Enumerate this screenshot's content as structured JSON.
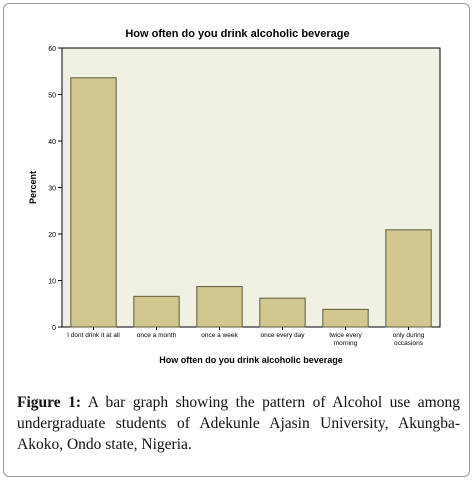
{
  "chart_data": {
    "type": "bar",
    "title": "How often do you drink alcoholic beverage",
    "xlabel": "How often do you drink alcoholic beverage",
    "ylabel": "Percent",
    "categories": [
      "I dont drink it at all",
      "once a month",
      "once a week",
      "once every day",
      "twice every morning",
      "only during occasions"
    ],
    "category_lines": [
      [
        "I dont drink it at all"
      ],
      [
        "once a month"
      ],
      [
        "once a week"
      ],
      [
        "once every day"
      ],
      [
        "twice every",
        "morning"
      ],
      [
        "only during",
        "occasions"
      ]
    ],
    "values": [
      53.6,
      6.6,
      8.7,
      6.2,
      3.8,
      20.9
    ],
    "ylim": [
      0,
      60
    ],
    "yticks": [
      "0",
      "10",
      "20",
      "30",
      "40",
      "50",
      "60"
    ],
    "grid": false,
    "colors": {
      "plot_background": "#f1f1e3",
      "bar_fill": "#d2c88f",
      "bar_stroke": "#5e5a3c"
    }
  },
  "caption": {
    "label": "Figure 1:",
    "text": " A bar graph showing the pattern of Alcohol use among undergraduate students of Adekunle Ajasin University, Akungba-Akoko, Ondo state, Nigeria."
  }
}
